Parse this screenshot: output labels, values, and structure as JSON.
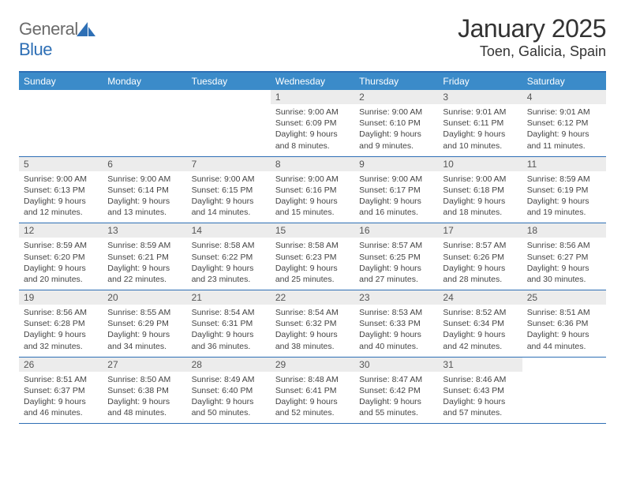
{
  "brand": {
    "name_part1": "General",
    "name_part2": "Blue"
  },
  "title": "January 2025",
  "location": "Toen, Galicia, Spain",
  "colors": {
    "header_bar": "#3b8bc9",
    "divider": "#2e6fb5",
    "daynum_bg": "#ececec",
    "text": "#333333",
    "logo_gray": "#6b6b6b"
  },
  "layout": {
    "columns": 7,
    "weekday_fontsize": 12,
    "daynum_fontsize": 12,
    "body_fontsize": 10.5,
    "title_fontsize": 32,
    "location_fontsize": 18
  },
  "weekdays": [
    "Sunday",
    "Monday",
    "Tuesday",
    "Wednesday",
    "Thursday",
    "Friday",
    "Saturday"
  ],
  "weeks": [
    [
      {
        "n": "",
        "lines": []
      },
      {
        "n": "",
        "lines": []
      },
      {
        "n": "",
        "lines": []
      },
      {
        "n": "1",
        "lines": [
          "Sunrise: 9:00 AM",
          "Sunset: 6:09 PM",
          "Daylight: 9 hours",
          "and 8 minutes."
        ]
      },
      {
        "n": "2",
        "lines": [
          "Sunrise: 9:00 AM",
          "Sunset: 6:10 PM",
          "Daylight: 9 hours",
          "and 9 minutes."
        ]
      },
      {
        "n": "3",
        "lines": [
          "Sunrise: 9:01 AM",
          "Sunset: 6:11 PM",
          "Daylight: 9 hours",
          "and 10 minutes."
        ]
      },
      {
        "n": "4",
        "lines": [
          "Sunrise: 9:01 AM",
          "Sunset: 6:12 PM",
          "Daylight: 9 hours",
          "and 11 minutes."
        ]
      }
    ],
    [
      {
        "n": "5",
        "lines": [
          "Sunrise: 9:00 AM",
          "Sunset: 6:13 PM",
          "Daylight: 9 hours",
          "and 12 minutes."
        ]
      },
      {
        "n": "6",
        "lines": [
          "Sunrise: 9:00 AM",
          "Sunset: 6:14 PM",
          "Daylight: 9 hours",
          "and 13 minutes."
        ]
      },
      {
        "n": "7",
        "lines": [
          "Sunrise: 9:00 AM",
          "Sunset: 6:15 PM",
          "Daylight: 9 hours",
          "and 14 minutes."
        ]
      },
      {
        "n": "8",
        "lines": [
          "Sunrise: 9:00 AM",
          "Sunset: 6:16 PM",
          "Daylight: 9 hours",
          "and 15 minutes."
        ]
      },
      {
        "n": "9",
        "lines": [
          "Sunrise: 9:00 AM",
          "Sunset: 6:17 PM",
          "Daylight: 9 hours",
          "and 16 minutes."
        ]
      },
      {
        "n": "10",
        "lines": [
          "Sunrise: 9:00 AM",
          "Sunset: 6:18 PM",
          "Daylight: 9 hours",
          "and 18 minutes."
        ]
      },
      {
        "n": "11",
        "lines": [
          "Sunrise: 8:59 AM",
          "Sunset: 6:19 PM",
          "Daylight: 9 hours",
          "and 19 minutes."
        ]
      }
    ],
    [
      {
        "n": "12",
        "lines": [
          "Sunrise: 8:59 AM",
          "Sunset: 6:20 PM",
          "Daylight: 9 hours",
          "and 20 minutes."
        ]
      },
      {
        "n": "13",
        "lines": [
          "Sunrise: 8:59 AM",
          "Sunset: 6:21 PM",
          "Daylight: 9 hours",
          "and 22 minutes."
        ]
      },
      {
        "n": "14",
        "lines": [
          "Sunrise: 8:58 AM",
          "Sunset: 6:22 PM",
          "Daylight: 9 hours",
          "and 23 minutes."
        ]
      },
      {
        "n": "15",
        "lines": [
          "Sunrise: 8:58 AM",
          "Sunset: 6:23 PM",
          "Daylight: 9 hours",
          "and 25 minutes."
        ]
      },
      {
        "n": "16",
        "lines": [
          "Sunrise: 8:57 AM",
          "Sunset: 6:25 PM",
          "Daylight: 9 hours",
          "and 27 minutes."
        ]
      },
      {
        "n": "17",
        "lines": [
          "Sunrise: 8:57 AM",
          "Sunset: 6:26 PM",
          "Daylight: 9 hours",
          "and 28 minutes."
        ]
      },
      {
        "n": "18",
        "lines": [
          "Sunrise: 8:56 AM",
          "Sunset: 6:27 PM",
          "Daylight: 9 hours",
          "and 30 minutes."
        ]
      }
    ],
    [
      {
        "n": "19",
        "lines": [
          "Sunrise: 8:56 AM",
          "Sunset: 6:28 PM",
          "Daylight: 9 hours",
          "and 32 minutes."
        ]
      },
      {
        "n": "20",
        "lines": [
          "Sunrise: 8:55 AM",
          "Sunset: 6:29 PM",
          "Daylight: 9 hours",
          "and 34 minutes."
        ]
      },
      {
        "n": "21",
        "lines": [
          "Sunrise: 8:54 AM",
          "Sunset: 6:31 PM",
          "Daylight: 9 hours",
          "and 36 minutes."
        ]
      },
      {
        "n": "22",
        "lines": [
          "Sunrise: 8:54 AM",
          "Sunset: 6:32 PM",
          "Daylight: 9 hours",
          "and 38 minutes."
        ]
      },
      {
        "n": "23",
        "lines": [
          "Sunrise: 8:53 AM",
          "Sunset: 6:33 PM",
          "Daylight: 9 hours",
          "and 40 minutes."
        ]
      },
      {
        "n": "24",
        "lines": [
          "Sunrise: 8:52 AM",
          "Sunset: 6:34 PM",
          "Daylight: 9 hours",
          "and 42 minutes."
        ]
      },
      {
        "n": "25",
        "lines": [
          "Sunrise: 8:51 AM",
          "Sunset: 6:36 PM",
          "Daylight: 9 hours",
          "and 44 minutes."
        ]
      }
    ],
    [
      {
        "n": "26",
        "lines": [
          "Sunrise: 8:51 AM",
          "Sunset: 6:37 PM",
          "Daylight: 9 hours",
          "and 46 minutes."
        ]
      },
      {
        "n": "27",
        "lines": [
          "Sunrise: 8:50 AM",
          "Sunset: 6:38 PM",
          "Daylight: 9 hours",
          "and 48 minutes."
        ]
      },
      {
        "n": "28",
        "lines": [
          "Sunrise: 8:49 AM",
          "Sunset: 6:40 PM",
          "Daylight: 9 hours",
          "and 50 minutes."
        ]
      },
      {
        "n": "29",
        "lines": [
          "Sunrise: 8:48 AM",
          "Sunset: 6:41 PM",
          "Daylight: 9 hours",
          "and 52 minutes."
        ]
      },
      {
        "n": "30",
        "lines": [
          "Sunrise: 8:47 AM",
          "Sunset: 6:42 PM",
          "Daylight: 9 hours",
          "and 55 minutes."
        ]
      },
      {
        "n": "31",
        "lines": [
          "Sunrise: 8:46 AM",
          "Sunset: 6:43 PM",
          "Daylight: 9 hours",
          "and 57 minutes."
        ]
      },
      {
        "n": "",
        "lines": []
      }
    ]
  ]
}
